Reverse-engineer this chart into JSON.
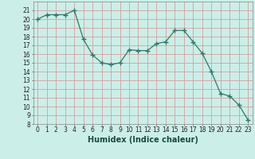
{
  "x": [
    0,
    1,
    2,
    3,
    4,
    5,
    6,
    7,
    8,
    9,
    10,
    11,
    12,
    13,
    14,
    15,
    16,
    17,
    18,
    19,
    20,
    21,
    22,
    23
  ],
  "y": [
    20.0,
    20.5,
    20.5,
    20.5,
    21.0,
    17.7,
    15.9,
    15.0,
    14.8,
    15.0,
    16.5,
    16.4,
    16.4,
    17.2,
    17.4,
    18.7,
    18.7,
    17.4,
    16.1,
    14.0,
    11.5,
    11.2,
    10.2,
    8.5
  ],
  "line_color": "#2d7a6a",
  "marker": "+",
  "marker_size": 4,
  "marker_lw": 1.0,
  "bg_color": "#cceee8",
  "grid_color": "#d4a0a0",
  "xlabel": "Humidex (Indice chaleur)",
  "ylim": [
    8,
    22
  ],
  "xlim": [
    -0.5,
    23.5
  ],
  "yticks": [
    8,
    9,
    10,
    11,
    12,
    13,
    14,
    15,
    16,
    17,
    18,
    19,
    20,
    21
  ],
  "xticks": [
    0,
    1,
    2,
    3,
    4,
    5,
    6,
    7,
    8,
    9,
    10,
    11,
    12,
    13,
    14,
    15,
    16,
    17,
    18,
    19,
    20,
    21,
    22,
    23
  ],
  "tick_fontsize": 5.5,
  "xlabel_fontsize": 7
}
